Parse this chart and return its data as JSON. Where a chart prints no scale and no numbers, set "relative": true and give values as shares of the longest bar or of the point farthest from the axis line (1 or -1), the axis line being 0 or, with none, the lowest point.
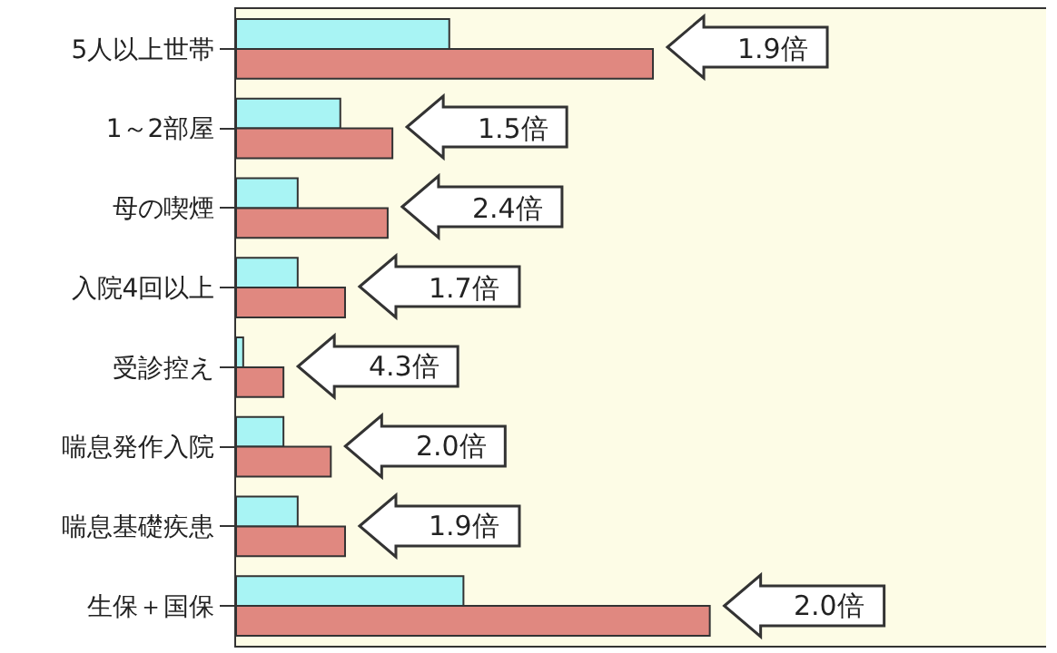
{
  "chart_data": {
    "type": "bar",
    "orientation": "horizontal",
    "relative": true,
    "categories": [
      "5人以上世帯",
      "1～2部屋",
      "母の喫煙",
      "入院4回以上",
      "受診控え",
      "喘息発作入院",
      "喘息基礎疾患",
      "生保＋国保"
    ],
    "series": [
      {
        "color": "#a8f4f4",
        "values": [
          0.45,
          0.22,
          0.13,
          0.13,
          0.015,
          0.1,
          0.13,
          0.48
        ]
      },
      {
        "color": "#e08880",
        "values": [
          0.88,
          0.33,
          0.32,
          0.23,
          0.1,
          0.2,
          0.23,
          1
        ]
      }
    ],
    "annotations": [
      "1.9倍",
      "1.5倍",
      "2.4倍",
      "1.7倍",
      "4.3倍",
      "2.0倍",
      "1.9倍",
      "2.0倍"
    ]
  }
}
